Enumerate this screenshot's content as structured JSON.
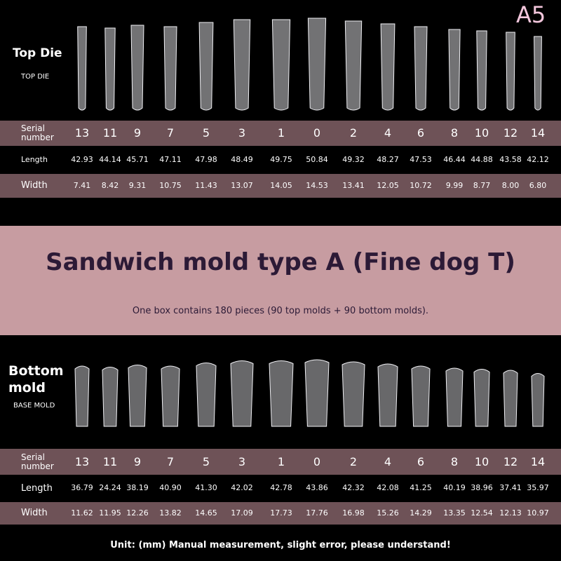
{
  "badge": "A5",
  "top": {
    "title": "Top Die",
    "subtitle": "TOP DIE",
    "table": {
      "rows": [
        {
          "label": "Serial number",
          "cells": [
            "13",
            "11",
            "9",
            "7",
            "5",
            "3",
            "1",
            "0",
            "2",
            "4",
            "6",
            "8",
            "10",
            "12",
            "14"
          ]
        },
        {
          "label": "Length",
          "cells": [
            "42.93",
            "44.14",
            "45.71",
            "47.11",
            "47.98",
            "48.49",
            "49.75",
            "50.84",
            "49.32",
            "48.27",
            "47.53",
            "46.44",
            "44.88",
            "43.58",
            "42.12"
          ]
        },
        {
          "label": "Width",
          "cells": [
            "7.41",
            "8.42",
            "9.31",
            "10.75",
            "11.43",
            "13.07",
            "14.05",
            "14.53",
            "13.41",
            "12.05",
            "10.72",
            "9.99",
            "8.77",
            "8.00",
            "6.80"
          ]
        }
      ]
    }
  },
  "banner": {
    "title": "Sandwich mold type A (Fine dog T)",
    "note": "One box contains 180 pieces (90 top molds + 90 bottom molds)."
  },
  "bottom": {
    "title": "Bottom mold",
    "subtitle": "BASE MOLD",
    "table": {
      "rows": [
        {
          "label": "Serial number",
          "cells": [
            "13",
            "11",
            "9",
            "7",
            "5",
            "3",
            "1",
            "0",
            "2",
            "4",
            "6",
            "8",
            "10",
            "12",
            "14"
          ]
        },
        {
          "label": "Length",
          "cells": [
            "36.79",
            "24.24",
            "38.19",
            "40.90",
            "41.30",
            "42.02",
            "42.78",
            "43.86",
            "42.32",
            "42.08",
            "41.25",
            "40.19",
            "38.96",
            "37.41",
            "35.97"
          ]
        },
        {
          "label": "Width",
          "cells": [
            "11.62",
            "11.95",
            "12.26",
            "13.82",
            "14.65",
            "17.09",
            "17.73",
            "17.76",
            "16.98",
            "15.26",
            "14.29",
            "13.35",
            "12.54",
            "12.13",
            "10.97"
          ]
        }
      ]
    }
  },
  "footer": "Unit: (mm) Manual measurement, slight error, please understand!"
}
